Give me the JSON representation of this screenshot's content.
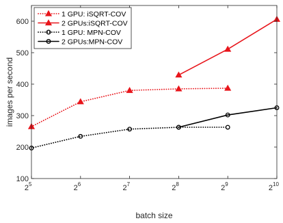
{
  "chart_data": {
    "type": "line",
    "xlabel": "batch size",
    "ylabel": "images per second",
    "x_scale": "log2",
    "x_ticks": [
      {
        "value": 32,
        "base": "2",
        "exp": "5"
      },
      {
        "value": 64,
        "base": "2",
        "exp": "6"
      },
      {
        "value": 128,
        "base": "2",
        "exp": "7"
      },
      {
        "value": 256,
        "base": "2",
        "exp": "8"
      },
      {
        "value": 512,
        "base": "2",
        "exp": "9"
      },
      {
        "value": 1024,
        "base": "2",
        "exp": "10"
      }
    ],
    "y_ticks": [
      "100",
      "200",
      "300",
      "400",
      "500",
      "600"
    ],
    "xlim": [
      32,
      1024
    ],
    "ylim": [
      100,
      650
    ],
    "grid": false,
    "legend_position": "top-left",
    "series": [
      {
        "name": "1 GPU:  iSQRT-COV",
        "color": "#e8151b",
        "line": "dotted",
        "marker": "triangle",
        "x": [
          32,
          64,
          128,
          256,
          512
        ],
        "y": [
          265,
          344,
          380,
          385,
          387
        ]
      },
      {
        "name": "2 GPUs:iSQRT-COV",
        "color": "#e8151b",
        "line": "solid",
        "marker": "triangle",
        "x": [
          256,
          512,
          1024
        ],
        "y": [
          429,
          511,
          606
        ]
      },
      {
        "name": "1 GPU:  MPN-COV",
        "color": "#000000",
        "line": "dotted",
        "marker": "circle",
        "x": [
          32,
          64,
          128,
          256,
          512
        ],
        "y": [
          197,
          234,
          257,
          263,
          263
        ]
      },
      {
        "name": "2 GPUs:MPN-COV",
        "color": "#000000",
        "line": "solid",
        "marker": "circle",
        "x": [
          256,
          512,
          1024
        ],
        "y": [
          263,
          302,
          325
        ]
      }
    ]
  }
}
